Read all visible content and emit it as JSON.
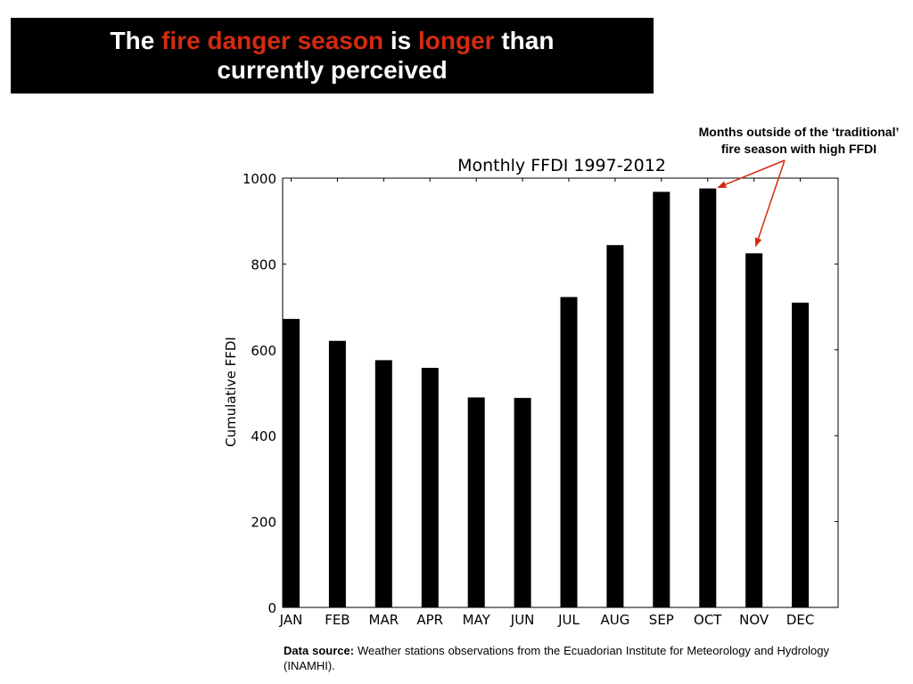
{
  "slide": {
    "title_parts": {
      "part1": "The ",
      "part2": "fire danger season",
      "part3": " is ",
      "part4": "longer",
      "part5": " than",
      "line2": "currently  perceived"
    },
    "annotation": {
      "line1": "Months outside of the ‘traditional’",
      "line2": "fire season with high FFDI"
    },
    "source": {
      "label": "Data source:",
      "text": " Weather stations observations from the Ecuadorian Institute for Meteorology and Hydrology (INAMHI)."
    }
  },
  "colors": {
    "highlight": "#d42b10",
    "bar": "#000000",
    "title_background": "#000000"
  },
  "chart_data": {
    "type": "bar",
    "title": "Monthly FFDI 1997-2012",
    "xlabel": "",
    "ylabel": "Cumulative FFDI",
    "categories": [
      "JAN",
      "FEB",
      "MAR",
      "APR",
      "MAY",
      "JUN",
      "JUL",
      "AUG",
      "SEP",
      "OCT",
      "NOV",
      "DEC"
    ],
    "values": [
      672,
      621,
      576,
      558,
      489,
      488,
      723,
      844,
      968,
      976,
      825,
      710
    ],
    "ylim": [
      0,
      1000
    ],
    "yticks": [
      0,
      200,
      400,
      600,
      800,
      1000
    ],
    "grid": false,
    "legend": "none",
    "annotated_categories": [
      "OCT",
      "NOV"
    ]
  }
}
